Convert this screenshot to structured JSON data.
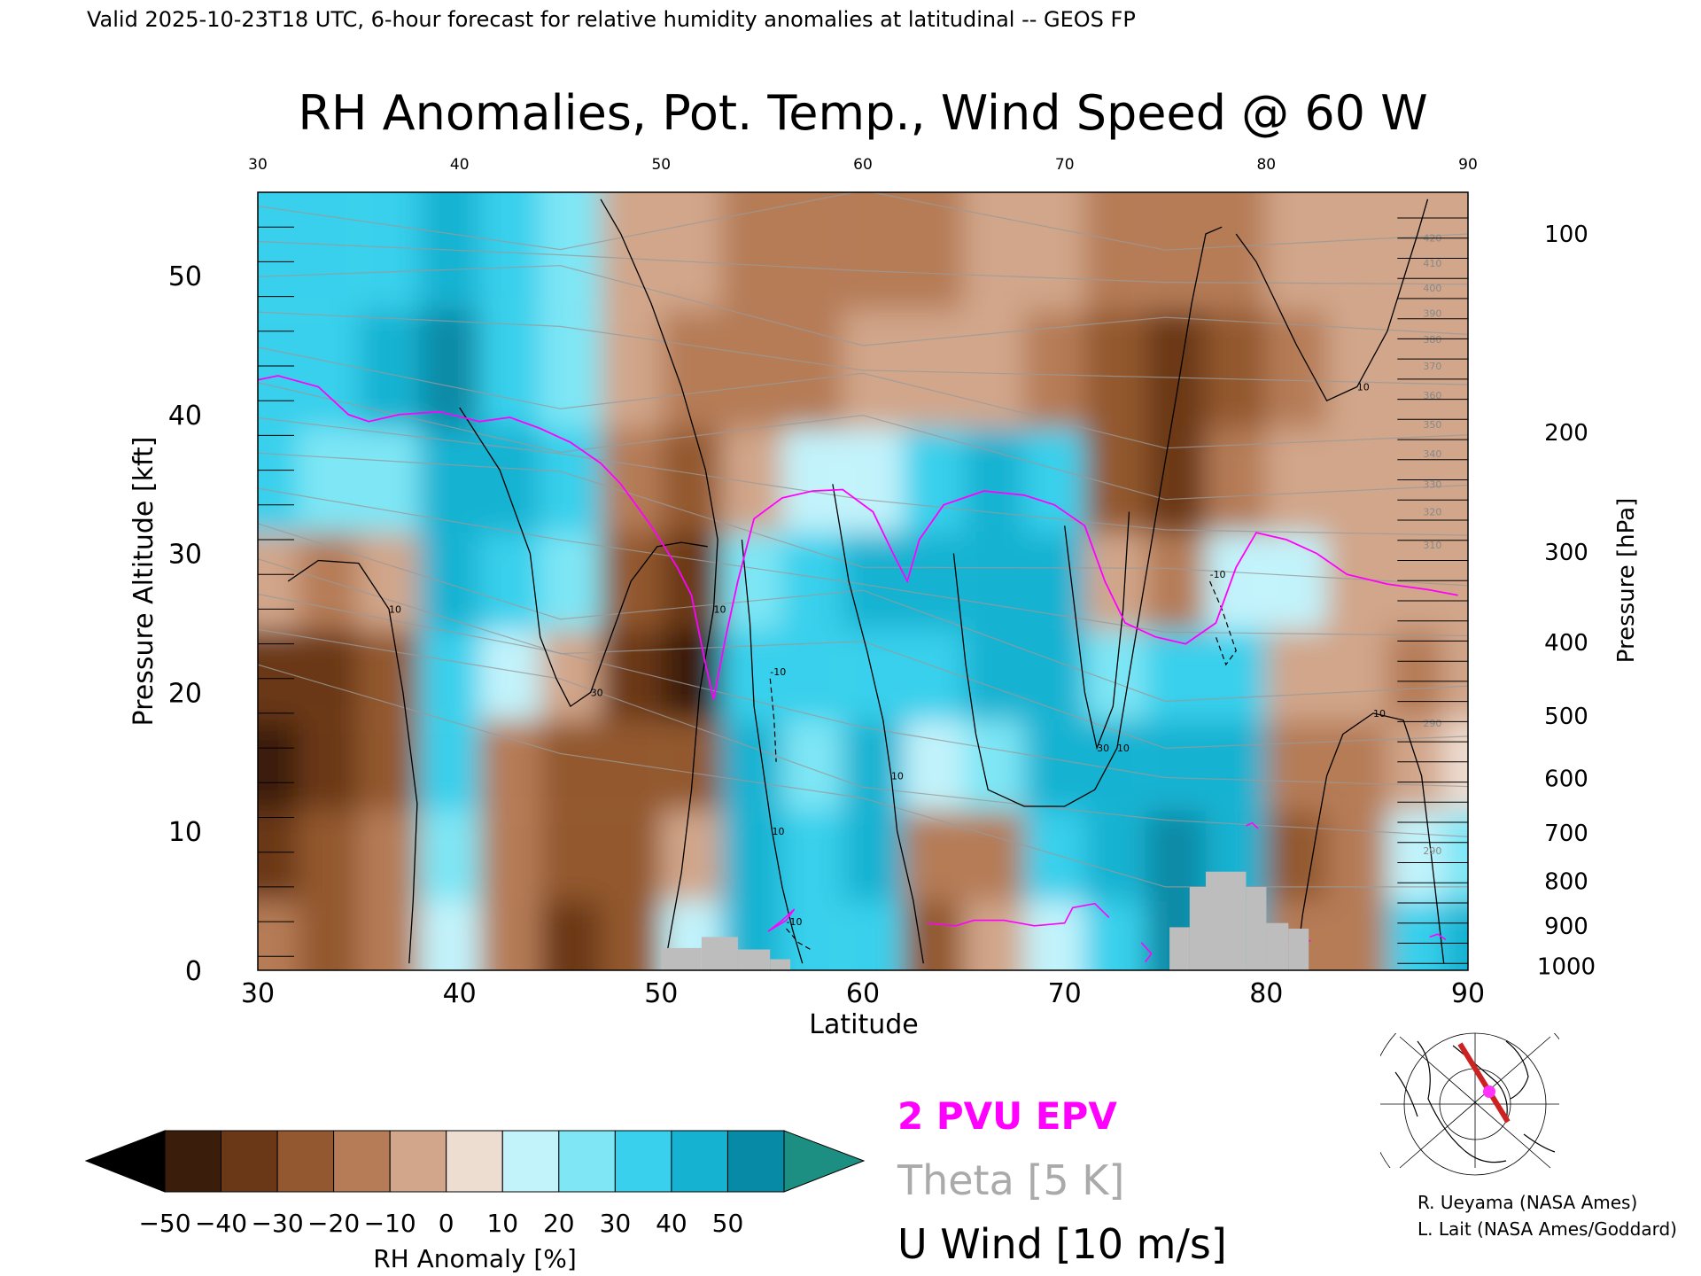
{
  "header": {
    "valid_line": "Valid 2025-10-23T18 UTC, 6-hour forecast for relative humidity anomalies at latitudinal -- GEOS FP"
  },
  "chart_data": {
    "type": "heatmap",
    "title": "RH Anomalies, Pot. Temp., Wind Speed @ 60 W",
    "xlabel": "Latitude",
    "ylabel": "Pressure Altitude [kft]",
    "y2label": "Pressure [hPa]",
    "xlim": [
      30,
      90
    ],
    "ylim": [
      0,
      56
    ],
    "x_ticks": [
      "30",
      "40",
      "50",
      "60",
      "70",
      "80",
      "90"
    ],
    "y_ticks": [
      "0",
      "10",
      "20",
      "30",
      "40",
      "50"
    ],
    "pressure_ticks": [
      {
        "label": "100",
        "kft": 53.0
      },
      {
        "label": "200",
        "kft": 38.7
      },
      {
        "label": "300",
        "kft": 30.1
      },
      {
        "label": "400",
        "kft": 23.6
      },
      {
        "label": "500",
        "kft": 18.3
      },
      {
        "label": "600",
        "kft": 13.8
      },
      {
        "label": "700",
        "kft": 9.9
      },
      {
        "label": "800",
        "kft": 6.4
      },
      {
        "label": "900",
        "kft": 3.2
      },
      {
        "label": "1000",
        "kft": 0.3
      }
    ],
    "anomaly_columns": [
      {
        "lat": 30.5,
        "v": [
          -20,
          -38,
          -45,
          -35,
          -10,
          30,
          35,
          35
        ]
      },
      {
        "lat": 33.5,
        "v": [
          -25,
          -30,
          -40,
          -35,
          -15,
          20,
          30,
          30
        ]
      },
      {
        "lat": 36.5,
        "v": [
          -15,
          -20,
          -30,
          -25,
          -5,
          25,
          40,
          35
        ]
      },
      {
        "lat": 39.5,
        "v": [
          10,
          20,
          30,
          35,
          40,
          45,
          50,
          40
        ]
      },
      {
        "lat": 42.5,
        "v": [
          -15,
          -20,
          -15,
          15,
          30,
          40,
          35,
          30
        ]
      },
      {
        "lat": 45.5,
        "v": [
          -40,
          -30,
          -25,
          -10,
          20,
          30,
          25,
          20
        ]
      },
      {
        "lat": 48.5,
        "v": [
          -25,
          -25,
          -30,
          -35,
          -30,
          -20,
          -10,
          -10
        ]
      },
      {
        "lat": 51.5,
        "v": [
          10,
          -10,
          -30,
          -45,
          -40,
          -30,
          -20,
          -10
        ]
      },
      {
        "lat": 54.5,
        "v": [
          40,
          45,
          40,
          35,
          20,
          -10,
          -20,
          -15
        ]
      },
      {
        "lat": 57.5,
        "v": [
          30,
          35,
          25,
          30,
          35,
          10,
          -15,
          -20
        ]
      },
      {
        "lat": 60.5,
        "v": [
          35,
          40,
          45,
          35,
          40,
          15,
          -10,
          -15
        ]
      },
      {
        "lat": 63.5,
        "v": [
          -30,
          -20,
          10,
          35,
          40,
          30,
          -10,
          -15
        ]
      },
      {
        "lat": 66.5,
        "v": [
          -10,
          -15,
          25,
          40,
          45,
          40,
          -5,
          -10
        ]
      },
      {
        "lat": 69.5,
        "v": [
          15,
          30,
          40,
          45,
          40,
          35,
          -15,
          -10
        ]
      },
      {
        "lat": 72.5,
        "v": [
          30,
          45,
          45,
          20,
          -5,
          -25,
          -30,
          -20
        ]
      },
      {
        "lat": 75.5,
        "v": [
          50,
          50,
          45,
          30,
          -15,
          -40,
          -35,
          -20
        ]
      },
      {
        "lat": 78.5,
        "v": [
          45,
          40,
          40,
          30,
          10,
          -20,
          -25,
          -15
        ]
      },
      {
        "lat": 81.5,
        "v": [
          -20,
          -25,
          -20,
          -10,
          10,
          -5,
          -15,
          -10
        ]
      },
      {
        "lat": 84.5,
        "v": [
          -15,
          -20,
          -15,
          -10,
          -5,
          -10,
          -10,
          -5
        ]
      },
      {
        "lat": 87.5,
        "v": [
          30,
          10,
          -10,
          -15,
          -5,
          -5,
          -10,
          -5
        ]
      },
      {
        "lat": 90,
        "v": [
          40,
          20,
          5,
          -10,
          -5,
          -5,
          -10,
          -5
        ]
      }
    ],
    "anomaly_levels_kft": [
      2,
      8,
      15,
      21,
      28,
      35,
      43,
      52
    ],
    "theta_levels": [
      "290",
      "300",
      "310",
      "320",
      "330",
      "340",
      "350",
      "360",
      "370",
      "380",
      "390",
      "400",
      "410",
      "420"
    ],
    "theta_right_labels": [
      {
        "label": "420",
        "kft": 52.7
      },
      {
        "label": "410",
        "kft": 50.9
      },
      {
        "label": "400",
        "kft": 49.1
      },
      {
        "label": "390",
        "kft": 47.3
      },
      {
        "label": "380",
        "kft": 45.4
      },
      {
        "label": "370",
        "kft": 43.5
      },
      {
        "label": "360",
        "kft": 41.4
      },
      {
        "label": "350",
        "kft": 39.3
      },
      {
        "label": "340",
        "kft": 37.2
      },
      {
        "label": "330",
        "kft": 35.0
      },
      {
        "label": "320",
        "kft": 33.0
      },
      {
        "label": "310",
        "kft": 30.6
      },
      {
        "label": "290",
        "kft": 17.8
      },
      {
        "label": "290",
        "kft": 8.6
      }
    ],
    "wind_contours": [
      {
        "label": "10",
        "points": [
          [
            37.5,
            0.5
          ],
          [
            37.7,
            5
          ],
          [
            37.9,
            12
          ],
          [
            37.2,
            20
          ],
          [
            36.5,
            26
          ],
          [
            35,
            29.3
          ],
          [
            33,
            29.5
          ],
          [
            31.5,
            28
          ]
        ]
      },
      {
        "label": "10",
        "points": [
          [
            47,
            55.5
          ],
          [
            48,
            53
          ],
          [
            49.5,
            48
          ],
          [
            51,
            42
          ],
          [
            52.2,
            36
          ],
          [
            52.8,
            31
          ],
          [
            52.6,
            26
          ],
          [
            51.9,
            20
          ],
          [
            51.5,
            13
          ],
          [
            51,
            7
          ],
          [
            50.5,
            3
          ],
          [
            50.2,
            0.5
          ]
        ]
      },
      {
        "label": "30",
        "points": [
          [
            40,
            40.5
          ],
          [
            42,
            36
          ],
          [
            43.5,
            30
          ],
          [
            44,
            24
          ],
          [
            44.8,
            21
          ],
          [
            45.5,
            19
          ],
          [
            46.5,
            20
          ],
          [
            47.5,
            24
          ],
          [
            48.5,
            28
          ],
          [
            49.8,
            30.5
          ],
          [
            51,
            30.8
          ],
          [
            52.3,
            30.5
          ]
        ]
      },
      {
        "label": "10",
        "points": [
          [
            54,
            31
          ],
          [
            54.4,
            25
          ],
          [
            54.6,
            19
          ],
          [
            55,
            15
          ],
          [
            55.5,
            10
          ],
          [
            56,
            6
          ],
          [
            56.5,
            3
          ],
          [
            57,
            0.5
          ]
        ]
      },
      {
        "label": "10",
        "points": [
          [
            58.5,
            35
          ],
          [
            59.3,
            28
          ],
          [
            60.2,
            23
          ],
          [
            61,
            18
          ],
          [
            61.4,
            14
          ],
          [
            61.7,
            10
          ],
          [
            62.5,
            5
          ],
          [
            63,
            0.5
          ]
        ]
      },
      {
        "label": "10",
        "points": [
          [
            64.5,
            30
          ],
          [
            64.8,
            26
          ],
          [
            65.1,
            22
          ],
          [
            65.6,
            17
          ],
          [
            66.2,
            13
          ],
          [
            68,
            11.8
          ],
          [
            70,
            11.8
          ],
          [
            71.5,
            13
          ],
          [
            72.6,
            16
          ],
          [
            73.4,
            23
          ],
          [
            74.1,
            29
          ],
          [
            74.8,
            35
          ],
          [
            75.5,
            41
          ],
          [
            76.3,
            48
          ],
          [
            77,
            53
          ],
          [
            77.8,
            53.5
          ]
        ]
      },
      {
        "label": "30",
        "points": [
          [
            70,
            32
          ],
          [
            70.5,
            26
          ],
          [
            71,
            20
          ],
          [
            71.6,
            16
          ],
          [
            72.4,
            19
          ],
          [
            72.9,
            26
          ],
          [
            73.2,
            33
          ]
        ]
      },
      {
        "label": "10",
        "points": [
          [
            78.5,
            53
          ],
          [
            79.5,
            51
          ],
          [
            81.5,
            45
          ],
          [
            83,
            41
          ],
          [
            84.5,
            42
          ],
          [
            86,
            46
          ],
          [
            87.5,
            53
          ],
          [
            88,
            55.5
          ]
        ]
      },
      {
        "label": "10",
        "points": [
          [
            81.5,
            0.5
          ],
          [
            81.8,
            4
          ],
          [
            82.5,
            10
          ],
          [
            83,
            14
          ],
          [
            83.8,
            17
          ],
          [
            85.3,
            18.5
          ],
          [
            86.8,
            18
          ],
          [
            87.7,
            14
          ],
          [
            88.2,
            8
          ],
          [
            88.6,
            3
          ],
          [
            88.8,
            0.5
          ]
        ]
      }
    ],
    "wind_contours_dashed": [
      {
        "label": "-10",
        "points": [
          [
            55.4,
            21
          ],
          [
            55.6,
            18
          ],
          [
            55.7,
            15
          ]
        ]
      },
      {
        "label": "-10",
        "points": [
          [
            77.2,
            28
          ],
          [
            77.8,
            26
          ],
          [
            78.5,
            23
          ],
          [
            78,
            22
          ],
          [
            77.5,
            24
          ]
        ]
      },
      {
        "label": "-10",
        "points": [
          [
            56.2,
            3
          ],
          [
            56.8,
            2
          ],
          [
            57.4,
            1.5
          ]
        ]
      }
    ],
    "pv2_line": [
      [
        30,
        42.5
      ],
      [
        31,
        42.8
      ],
      [
        33,
        42
      ],
      [
        34.5,
        40
      ],
      [
        35.5,
        39.5
      ],
      [
        37,
        40
      ],
      [
        39,
        40.2
      ],
      [
        41,
        39.5
      ],
      [
        42.5,
        39.8
      ],
      [
        44,
        39
      ],
      [
        45.5,
        38
      ],
      [
        47,
        36.5
      ],
      [
        48,
        35
      ],
      [
        49.5,
        32
      ],
      [
        50.8,
        29
      ],
      [
        51.5,
        27
      ],
      [
        52.2,
        22
      ],
      [
        52.6,
        19.5
      ],
      [
        53.2,
        24
      ],
      [
        53.8,
        28
      ],
      [
        54.6,
        32.5
      ],
      [
        56,
        34
      ],
      [
        57.5,
        34.5
      ],
      [
        59,
        34.6
      ],
      [
        60.5,
        33
      ],
      [
        61.5,
        30
      ],
      [
        62.2,
        28
      ],
      [
        62.8,
        31
      ],
      [
        64,
        33.5
      ],
      [
        66,
        34.5
      ],
      [
        68,
        34.2
      ],
      [
        69.5,
        33.5
      ],
      [
        71,
        32
      ],
      [
        72,
        28
      ],
      [
        73,
        25
      ],
      [
        74.5,
        24
      ],
      [
        76,
        23.5
      ],
      [
        77.5,
        25
      ],
      [
        78.5,
        29
      ],
      [
        79.5,
        31.5
      ],
      [
        81,
        31
      ],
      [
        82.5,
        30
      ],
      [
        84,
        28.5
      ],
      [
        86,
        27.8
      ],
      [
        88,
        27.4
      ],
      [
        89.5,
        27
      ]
    ],
    "pv2_blobs": [
      {
        "points": [
          [
            55.3,
            2.8
          ],
          [
            56,
            3.6
          ],
          [
            56.6,
            4.4
          ],
          [
            56.2,
            3.6
          ],
          [
            55.3,
            2.8
          ]
        ]
      },
      {
        "points": [
          [
            63.2,
            3.4
          ],
          [
            64.6,
            3.2
          ],
          [
            65.5,
            3.6
          ],
          [
            67,
            3.6
          ],
          [
            68.5,
            3.2
          ],
          [
            70,
            3.4
          ],
          [
            70.4,
            4.5
          ],
          [
            71.5,
            4.8
          ],
          [
            72.2,
            3.8
          ]
        ]
      },
      {
        "points": [
          [
            74,
            0.6
          ],
          [
            74.3,
            1.2
          ],
          [
            73.8,
            2.0
          ]
        ]
      },
      {
        "points": [
          [
            79,
            10.4
          ],
          [
            79.3,
            10.6
          ],
          [
            79.6,
            10.2
          ]
        ]
      },
      {
        "points": [
          [
            80.5,
            2.2
          ],
          [
            81.5,
            2.4
          ],
          [
            82.2,
            2.1
          ]
        ]
      },
      {
        "points": [
          [
            88.1,
            2.4
          ],
          [
            88.5,
            2.6
          ],
          [
            88.9,
            2.2
          ]
        ]
      }
    ],
    "terrain": [
      {
        "x0": 50,
        "x1": 52.0,
        "top": 1.6
      },
      {
        "x0": 52.0,
        "x1": 53.8,
        "top": 2.4
      },
      {
        "x0": 53.8,
        "x1": 55.4,
        "top": 1.5
      },
      {
        "x0": 55.4,
        "x1": 56.4,
        "top": 0.8
      },
      {
        "x0": 75.2,
        "x1": 76.2,
        "top": 3.1
      },
      {
        "x0": 76.2,
        "x1": 77.0,
        "top": 6.0
      },
      {
        "x0": 77.0,
        "x1": 79.0,
        "top": 7.1
      },
      {
        "x0": 79.0,
        "x1": 80.0,
        "top": 6.0
      },
      {
        "x0": 80.0,
        "x1": 81.1,
        "top": 3.4
      },
      {
        "x0": 81.1,
        "x1": 82.1,
        "top": 3.0
      }
    ],
    "colorbar": {
      "label": "RH Anomaly [%]",
      "ticks": [
        "−50",
        "−40",
        "−30",
        "−20",
        "−10",
        "0",
        "10",
        "20",
        "30",
        "40",
        "50"
      ],
      "colors": [
        "#3b1d0b",
        "#6a3817",
        "#93582f",
        "#b57c57",
        "#d1a68a",
        "#eddcd0",
        "#c2f3fb",
        "#7ee6f5",
        "#38d0ec",
        "#15b2d2",
        "#078aa6"
      ],
      "under_color": "#000000",
      "over_color": "#1c8f82"
    },
    "legend": {
      "pv": {
        "label": "2 PVU EPV",
        "color": "#ff00ff"
      },
      "theta": {
        "label": "Theta [5 K]",
        "color": "#aaaaaa"
      },
      "wind": {
        "label": "U Wind [10 m/s]",
        "color": "#000000"
      }
    }
  },
  "credits": [
    "R. Ueyama (NASA Ames)",
    "L. Lait (NASA Ames/Goddard)"
  ],
  "inset_map": {
    "icon": "polar-map-icon",
    "track_color": "#cc2222",
    "marker_color": "#ff33ff"
  }
}
